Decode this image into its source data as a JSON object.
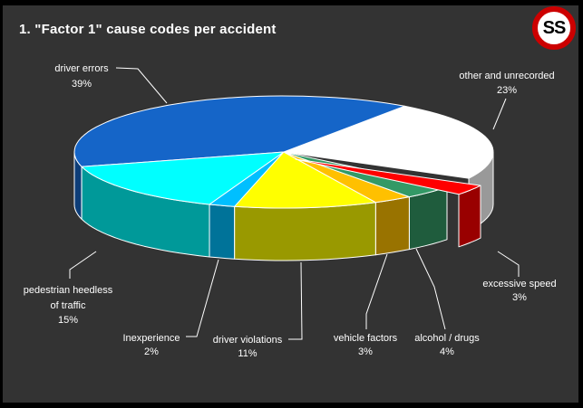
{
  "title": "1. \"Factor 1\" cause codes per accident",
  "logo": {
    "text": "SS",
    "ring_color": "#CC0000",
    "fill": "#FFFFFF",
    "text_color": "#000000"
  },
  "colors": {
    "background": "#333333",
    "frame_border": "#000000",
    "slice_outline": "#FFFFFF",
    "label_text": "#FFFFFF"
  },
  "chart_data": {
    "type": "pie",
    "projection": "3d-exploded",
    "title": "1. \"Factor 1\" cause codes per accident",
    "legend_position": "callout-labels",
    "slices": [
      {
        "label": "driver errors",
        "pct": 39,
        "color": "#1565C8",
        "exploded": false
      },
      {
        "label": "other and unrecorded",
        "pct": 23,
        "color": "#FFFFFF",
        "exploded": false
      },
      {
        "label": "excessive speed",
        "pct": 3,
        "color": "#FF0000",
        "exploded": true
      },
      {
        "label": "alcohol / drugs",
        "pct": 4,
        "color": "#339966",
        "exploded": false
      },
      {
        "label": "vehicle factors",
        "pct": 3,
        "color": "#FFC000",
        "exploded": false
      },
      {
        "label": "driver violations",
        "pct": 11,
        "color": "#FFFF00",
        "exploded": false
      },
      {
        "label": "Inexperience",
        "pct": 2,
        "color": "#00BFFF",
        "exploded": false
      },
      {
        "label": "pedestrian heedless of traffic",
        "pct": 15,
        "color": "#00FFFF",
        "exploded": false
      }
    ]
  }
}
